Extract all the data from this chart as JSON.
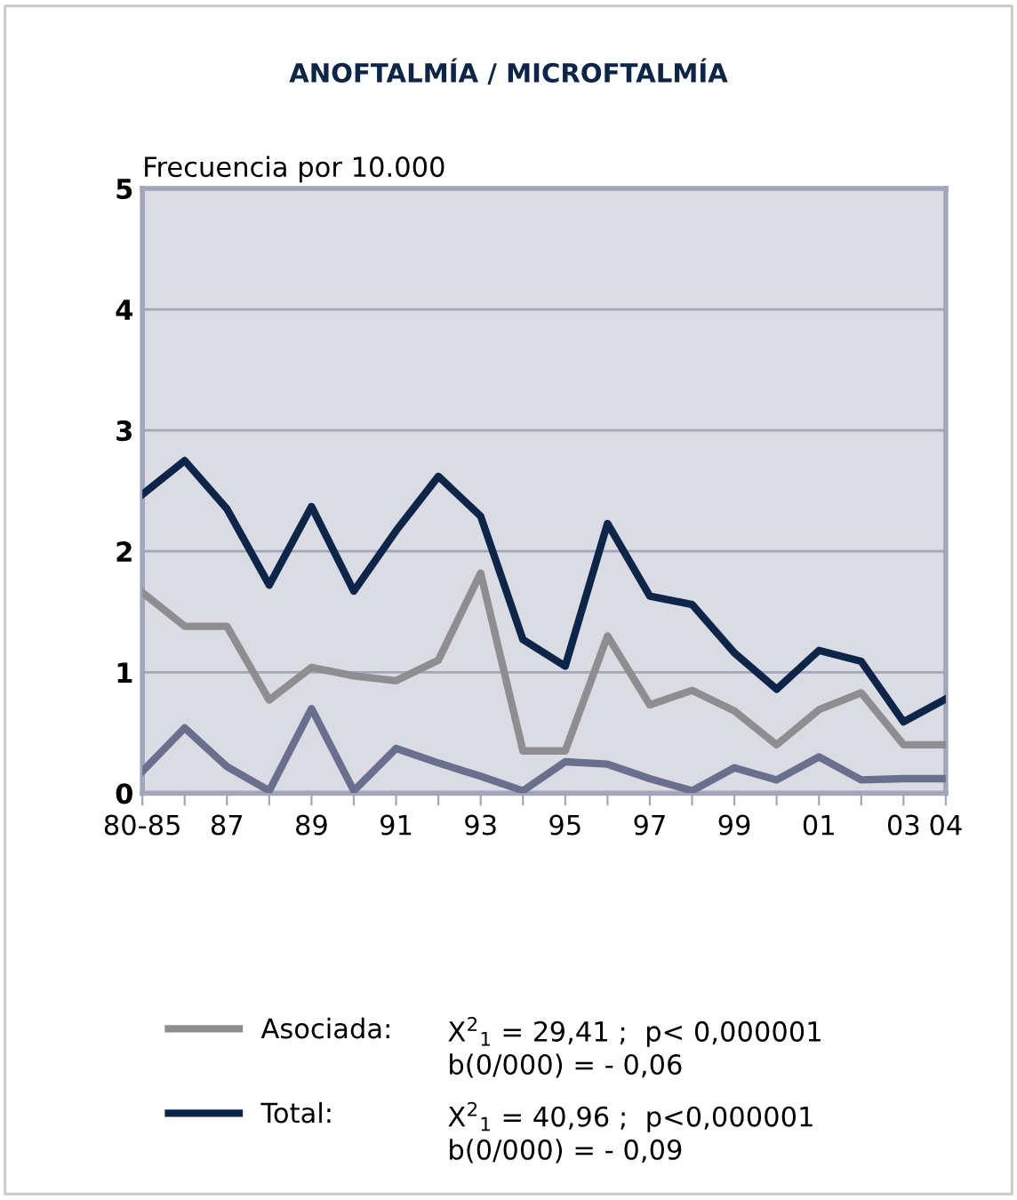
{
  "chart_data": {
    "type": "line",
    "title": "ANOFTALMÍA / MICROFTALMÍA",
    "ylabel": "Frecuencia por 10.000",
    "categories": [
      "80-85",
      null,
      "87",
      null,
      "89",
      null,
      "91",
      null,
      "93",
      null,
      "95",
      null,
      "97",
      null,
      "99",
      null,
      "01",
      null,
      "03",
      "04"
    ],
    "series": [
      {
        "color": "#6b6f8e",
        "values": [
          0.18,
          0.54,
          0.22,
          0.02,
          0.7,
          0.02,
          0.37,
          0.25,
          0.14,
          0.02,
          0.26,
          0.24,
          0.12,
          0.02,
          0.21,
          0.11,
          0.3,
          0.11,
          0.12,
          0.12
        ]
      },
      {
        "name": "Asociada:",
        "color": "#8e8e90",
        "values": [
          1.66,
          1.38,
          1.38,
          0.77,
          1.04,
          0.97,
          0.93,
          1.1,
          1.82,
          0.35,
          0.35,
          1.3,
          0.73,
          0.85,
          0.68,
          0.4,
          0.69,
          0.83,
          0.4,
          0.4
        ]
      },
      {
        "name": "Total:",
        "color": "#0c2548",
        "values": [
          2.47,
          2.75,
          2.35,
          1.72,
          2.37,
          1.67,
          2.17,
          2.62,
          2.29,
          1.27,
          1.05,
          2.23,
          1.63,
          1.56,
          1.16,
          0.86,
          1.18,
          1.09,
          0.59,
          0.78
        ]
      }
    ],
    "ylim": [
      0,
      5
    ],
    "yticks": [
      0,
      1,
      2,
      3,
      4,
      5
    ],
    "grid": "y",
    "legend": "bottom",
    "marker": "none",
    "line_style": "solid",
    "annotations": [
      "X$^{2}$$_{1}$ = 29,41 ;  p< 0,000001",
      "b(0/000) = - 0,06",
      "X$^{2}$$_{1}$ = 40,96 ;  p<0,000001",
      "b(0/000) = - 0,09"
    ]
  }
}
